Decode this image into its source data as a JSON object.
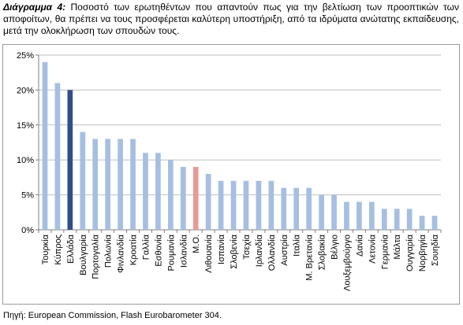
{
  "caption": {
    "label": "Διάγραμμα 4:",
    "text": "Ποσοστό των ερωτηθέντων που απαντούν πως για την βελτίωση των προοπτικών των αποφοίτων, θα πρέπει να τους προσφέρεται καλύτερη υποστήριξη, από τα ιδρύματα ανώτατης εκπαίδευσης, μετά την ολοκλήρωση των σπουδών τους."
  },
  "source": "Πηγή: European Commission, Flash Eurobarometer 304.",
  "colors": {
    "default_bar": "#a6bfe1",
    "highlight_bar": "#2e4f8a",
    "average_bar": "#e79a98",
    "grid": "#bfbfbf",
    "axis": "#808080"
  },
  "chart_data": {
    "type": "bar",
    "categories": [
      "Τουρκία",
      "Κύπρος",
      "Ελλάδα",
      "Βουλγαρία",
      "Πορτογαλία",
      "Πολωνία",
      "Φινλανδία",
      "Κροατία",
      "Γαλλία",
      "Εσθονία",
      "Ρουμανία",
      "Ισλανδία",
      "Μ.Ο.",
      "Λιθουανία",
      "Ισπανία",
      "Σλοβενία",
      "Τσεχία",
      "Ιρλανδία",
      "Ολλανδία",
      "Αυστρία",
      "Ιταλία",
      "Μ. Βρετανία",
      "Σλοβακία",
      "Βέλγιο",
      "Λουξεμβούργο",
      "Δανία",
      "Λετονία",
      "Γερμανία",
      "Μάλτα",
      "Ουγγαρία",
      "Νορβηγία",
      "Σουηδία"
    ],
    "values": [
      24,
      21,
      20,
      14,
      13,
      13,
      13,
      13,
      11,
      11,
      10,
      9,
      9,
      8,
      7,
      7,
      7,
      7,
      7,
      6,
      6,
      6,
      5,
      5,
      4,
      4,
      4,
      3,
      3,
      3,
      2,
      2
    ],
    "highlight": [
      "Ελλάδα"
    ],
    "average": [
      "Μ.Ο."
    ],
    "yticks": [
      "0%",
      "5%",
      "10%",
      "15%",
      "20%",
      "25%"
    ],
    "ylim": [
      0,
      25
    ],
    "grid": true
  }
}
